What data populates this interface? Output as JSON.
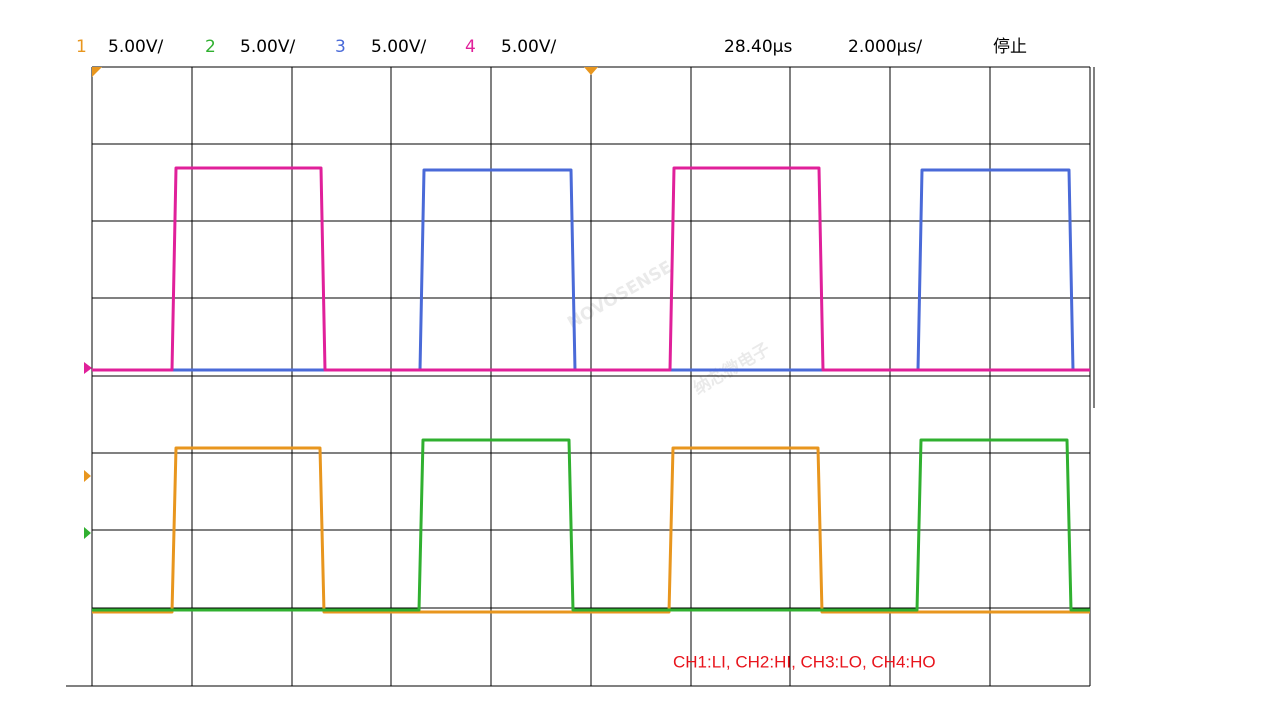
{
  "header": {
    "channels": [
      {
        "number": "1",
        "scale": "5.00V/"
      },
      {
        "number": "2",
        "scale": "5.00V/"
      },
      {
        "number": "3",
        "scale": "5.00V/"
      },
      {
        "number": "4",
        "scale": "5.00V/"
      }
    ],
    "delay": "28.40µs",
    "timebase": "2.000µs/",
    "status": "停止"
  },
  "annotation": "CH1:LI, CH2:HI, CH3:LO, CH4:HO",
  "watermark": {
    "brand": "NOVOSENSE",
    "cn": "纳芯微电子"
  }
}
